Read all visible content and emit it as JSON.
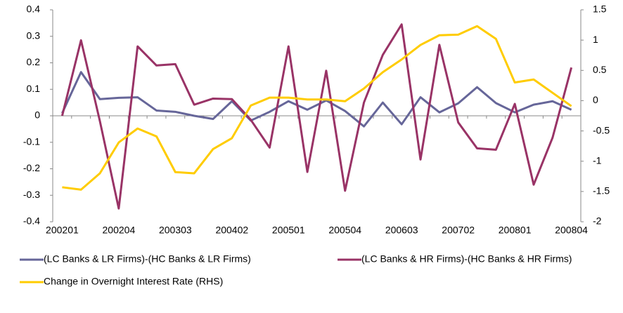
{
  "chart_data": {
    "type": "line",
    "categories": [
      "200201",
      null,
      null,
      "200204",
      null,
      null,
      "200303",
      null,
      null,
      "200402",
      null,
      null,
      "200501",
      null,
      null,
      "200504",
      null,
      null,
      "200603",
      null,
      null,
      "200702",
      null,
      null,
      "200801",
      null,
      null,
      "200804"
    ],
    "series": [
      {
        "name": "(LC Banks & LR Firms)-(HC Banks & LR Firms)",
        "color": "#666699",
        "axis": "y",
        "values": [
          0.01,
          0.165,
          0.063,
          0.068,
          0.07,
          0.02,
          0.015,
          0,
          -0.012,
          0.055,
          -0.018,
          0.015,
          0.055,
          0.023,
          0.058,
          0.018,
          -0.04,
          0.05,
          -0.032,
          0.07,
          0.013,
          0.047,
          0.108,
          0.048,
          0.013,
          0.042,
          0.055,
          0.023
        ]
      },
      {
        "name": "(LC Banks & HR Firms)-(HC Banks & HR Firms)",
        "color": "#993366",
        "axis": "y",
        "values": [
          0,
          0.285,
          -0.02,
          -0.35,
          0.262,
          0.19,
          0.195,
          0.042,
          0.065,
          0.063,
          -0.015,
          -0.12,
          0.262,
          -0.212,
          0.17,
          -0.283,
          0.05,
          0.23,
          0.345,
          -0.165,
          0.268,
          -0.025,
          -0.123,
          -0.128,
          0.045,
          -0.26,
          -0.083,
          0.182
        ]
      },
      {
        "name": "Change in Overnight Interest Rate (RHS)",
        "color": "#ffcc00",
        "axis": "y2",
        "values": [
          -1.43,
          -1.47,
          -1.2,
          -0.69,
          -0.46,
          -0.59,
          -1.18,
          -1.2,
          -0.8,
          -0.62,
          -0.08,
          0.05,
          0.05,
          0.02,
          0.02,
          -0.01,
          0.2,
          0.47,
          0.68,
          0.92,
          1.08,
          1.09,
          1.23,
          1.02,
          0.3,
          0.35,
          0.13,
          -0.09
        ]
      }
    ],
    "ylim": [
      -0.4,
      0.4
    ],
    "yticks": [
      -0.4,
      -0.3,
      -0.2,
      -0.1,
      0,
      0.1,
      0.2,
      0.3,
      0.4
    ],
    "y2lim": [
      -2,
      1.5
    ],
    "y2ticks": [
      -2,
      -1.5,
      -1,
      -0.5,
      0,
      0.5,
      1,
      1.5
    ],
    "grid": false,
    "legend": "bottom"
  }
}
